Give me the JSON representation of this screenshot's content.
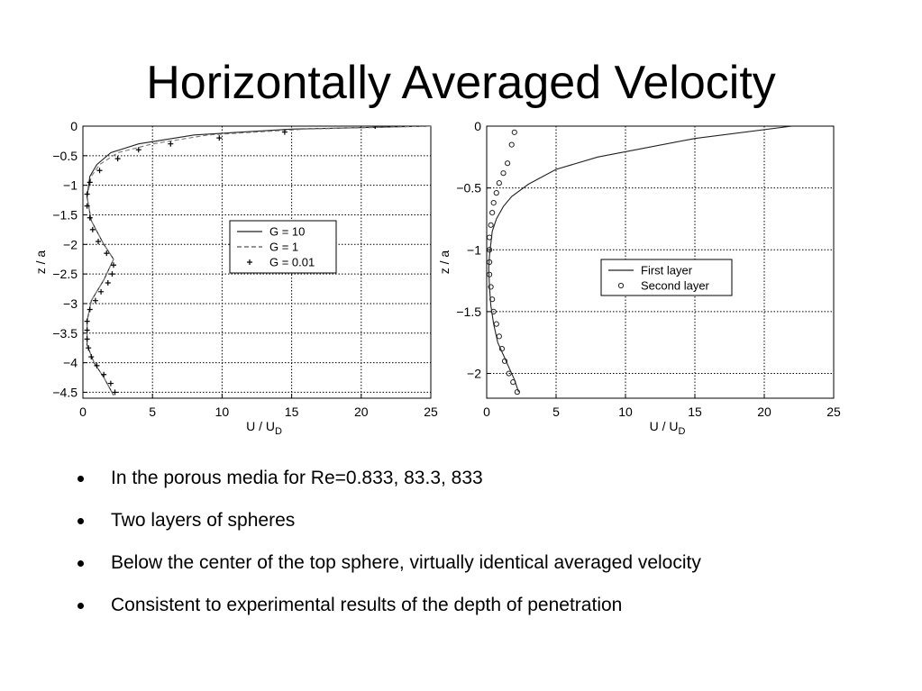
{
  "slide": {
    "title": "Horizontally Averaged Velocity",
    "bullets": [
      "In the porous media for Re=0.833, 83.3, 833",
      "Two layers of spheres",
      "Below the center of the top sphere, virtually identical averaged velocity",
      "Consistent to experimental results of the depth of penetration"
    ]
  },
  "chart_data": [
    {
      "type": "line",
      "title": "",
      "xlabel": "U / U_D",
      "ylabel": "z / a",
      "xlim": [
        0,
        25
      ],
      "ylim": [
        -4.6,
        0
      ],
      "xticks": [
        0,
        5,
        10,
        15,
        20,
        25
      ],
      "yticks": [
        0,
        -0.5,
        -1,
        -1.5,
        -2,
        -2.5,
        -3,
        -3.5,
        -4,
        -4.5
      ],
      "grid": true,
      "legend_position": "center-right",
      "series": [
        {
          "name": "G = 10",
          "style": "solid",
          "x": [
            25,
            15,
            8,
            4,
            2,
            1,
            0.5,
            0.3,
            0.6,
            1.5,
            2.2,
            1.5,
            0.6,
            0.3,
            0.3,
            0.8,
            1.5,
            2.2
          ],
          "y": [
            0,
            -0.05,
            -0.15,
            -0.3,
            -0.45,
            -0.65,
            -0.85,
            -1.2,
            -1.6,
            -2.0,
            -2.25,
            -2.6,
            -2.95,
            -3.3,
            -3.7,
            -4.0,
            -4.25,
            -4.55
          ]
        },
        {
          "name": "G = 1",
          "style": "dashed",
          "x": [
            25,
            16,
            9,
            5,
            2.5,
            1.2,
            0.6,
            0.3,
            0.6,
            1.5,
            2.2,
            1.5,
            0.6,
            0.3,
            0.3,
            0.8,
            1.5,
            2.2
          ],
          "y": [
            0,
            -0.05,
            -0.15,
            -0.3,
            -0.45,
            -0.65,
            -0.85,
            -1.2,
            -1.6,
            -2.0,
            -2.25,
            -2.6,
            -2.95,
            -3.3,
            -3.7,
            -4.0,
            -4.25,
            -4.55
          ]
        },
        {
          "name": "G = 0.01",
          "style": "plus",
          "x": [
            21,
            14.5,
            9.8,
            6.3,
            4,
            2.5,
            1.2,
            0.5,
            0.3,
            0.3,
            0.5,
            0.7,
            1.1,
            1.7,
            2.2,
            2.1,
            1.8,
            1.3,
            0.9,
            0.5,
            0.3,
            0.3,
            0.3,
            0.4,
            0.6,
            1.0,
            1.5,
            2.0,
            2.3
          ],
          "y": [
            0,
            -0.1,
            -0.2,
            -0.3,
            -0.4,
            -0.55,
            -0.75,
            -0.95,
            -1.15,
            -1.35,
            -1.55,
            -1.75,
            -1.95,
            -2.15,
            -2.35,
            -2.5,
            -2.65,
            -2.8,
            -2.95,
            -3.1,
            -3.3,
            -3.45,
            -3.6,
            -3.75,
            -3.9,
            -4.05,
            -4.2,
            -4.35,
            -4.5
          ]
        }
      ]
    },
    {
      "type": "line",
      "title": "",
      "xlabel": "U / U_D",
      "ylabel": "z / a",
      "xlim": [
        0,
        25
      ],
      "ylim": [
        -2.2,
        0
      ],
      "xticks": [
        0,
        5,
        10,
        15,
        20,
        25
      ],
      "yticks": [
        0,
        -0.5,
        -1,
        -1.5,
        -2
      ],
      "grid": true,
      "legend_position": "center-right",
      "series": [
        {
          "name": "First layer",
          "style": "solid",
          "x": [
            22,
            15,
            8,
            5,
            3,
            1.8,
            1.2,
            0.7,
            0.4,
            0.3,
            0.2,
            0.15,
            0.2,
            0.3,
            0.5,
            0.8,
            1.2,
            1.6,
            2.0,
            2.3
          ],
          "y": [
            0,
            -0.1,
            -0.25,
            -0.35,
            -0.47,
            -0.57,
            -0.65,
            -0.75,
            -0.85,
            -0.95,
            -1.05,
            -1.15,
            -1.3,
            -1.45,
            -1.6,
            -1.75,
            -1.85,
            -1.95,
            -2.05,
            -2.15
          ]
        },
        {
          "name": "Second layer",
          "style": "circle",
          "x": [
            2.0,
            1.8,
            1.5,
            1.2,
            0.9,
            0.7,
            0.5,
            0.4,
            0.3,
            0.2,
            0.2,
            0.2,
            0.2,
            0.3,
            0.4,
            0.5,
            0.7,
            0.9,
            1.1,
            1.3,
            1.6,
            1.9,
            2.2
          ],
          "y": [
            -0.05,
            -0.15,
            -0.3,
            -0.38,
            -0.46,
            -0.54,
            -0.62,
            -0.7,
            -0.8,
            -0.9,
            -1.0,
            -1.1,
            -1.2,
            -1.3,
            -1.4,
            -1.5,
            -1.6,
            -1.7,
            -1.8,
            -1.9,
            -2.0,
            -2.07,
            -2.15
          ]
        }
      ]
    }
  ]
}
